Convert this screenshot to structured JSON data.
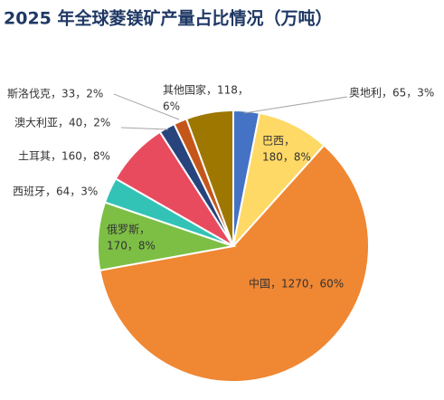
{
  "chart_data": {
    "type": "pie",
    "title": "2025 年全球菱镁矿产量占比情况（万吨）",
    "categories": [
      "奥地利",
      "巴西",
      "中国",
      "俄罗斯",
      "西班牙",
      "土耳其",
      "澳大利亚",
      "斯洛伐克",
      "其他国家"
    ],
    "values": [
      65,
      180,
      1270,
      170,
      64,
      160,
      40,
      33,
      118
    ],
    "labels": [
      [
        "奥地利，65，3%"
      ],
      [
        "巴西，",
        "180，8%"
      ],
      [
        "中国，1270，60%"
      ],
      [
        "俄罗斯，",
        "170，8%"
      ],
      [
        "西班牙，64，3%"
      ],
      [
        "土耳其，160，8%"
      ],
      [
        "澳大利亚，40，2%"
      ],
      [
        "斯洛伐克，33，2%"
      ],
      [
        "其他国家，118，",
        "6%"
      ]
    ],
    "colors": [
      "#4472c4",
      "#ffd966",
      "#ef8733",
      "#7dbf45",
      "#33c3b6",
      "#e84b5e",
      "#27447d",
      "#c5561a",
      "#9e7700"
    ]
  }
}
